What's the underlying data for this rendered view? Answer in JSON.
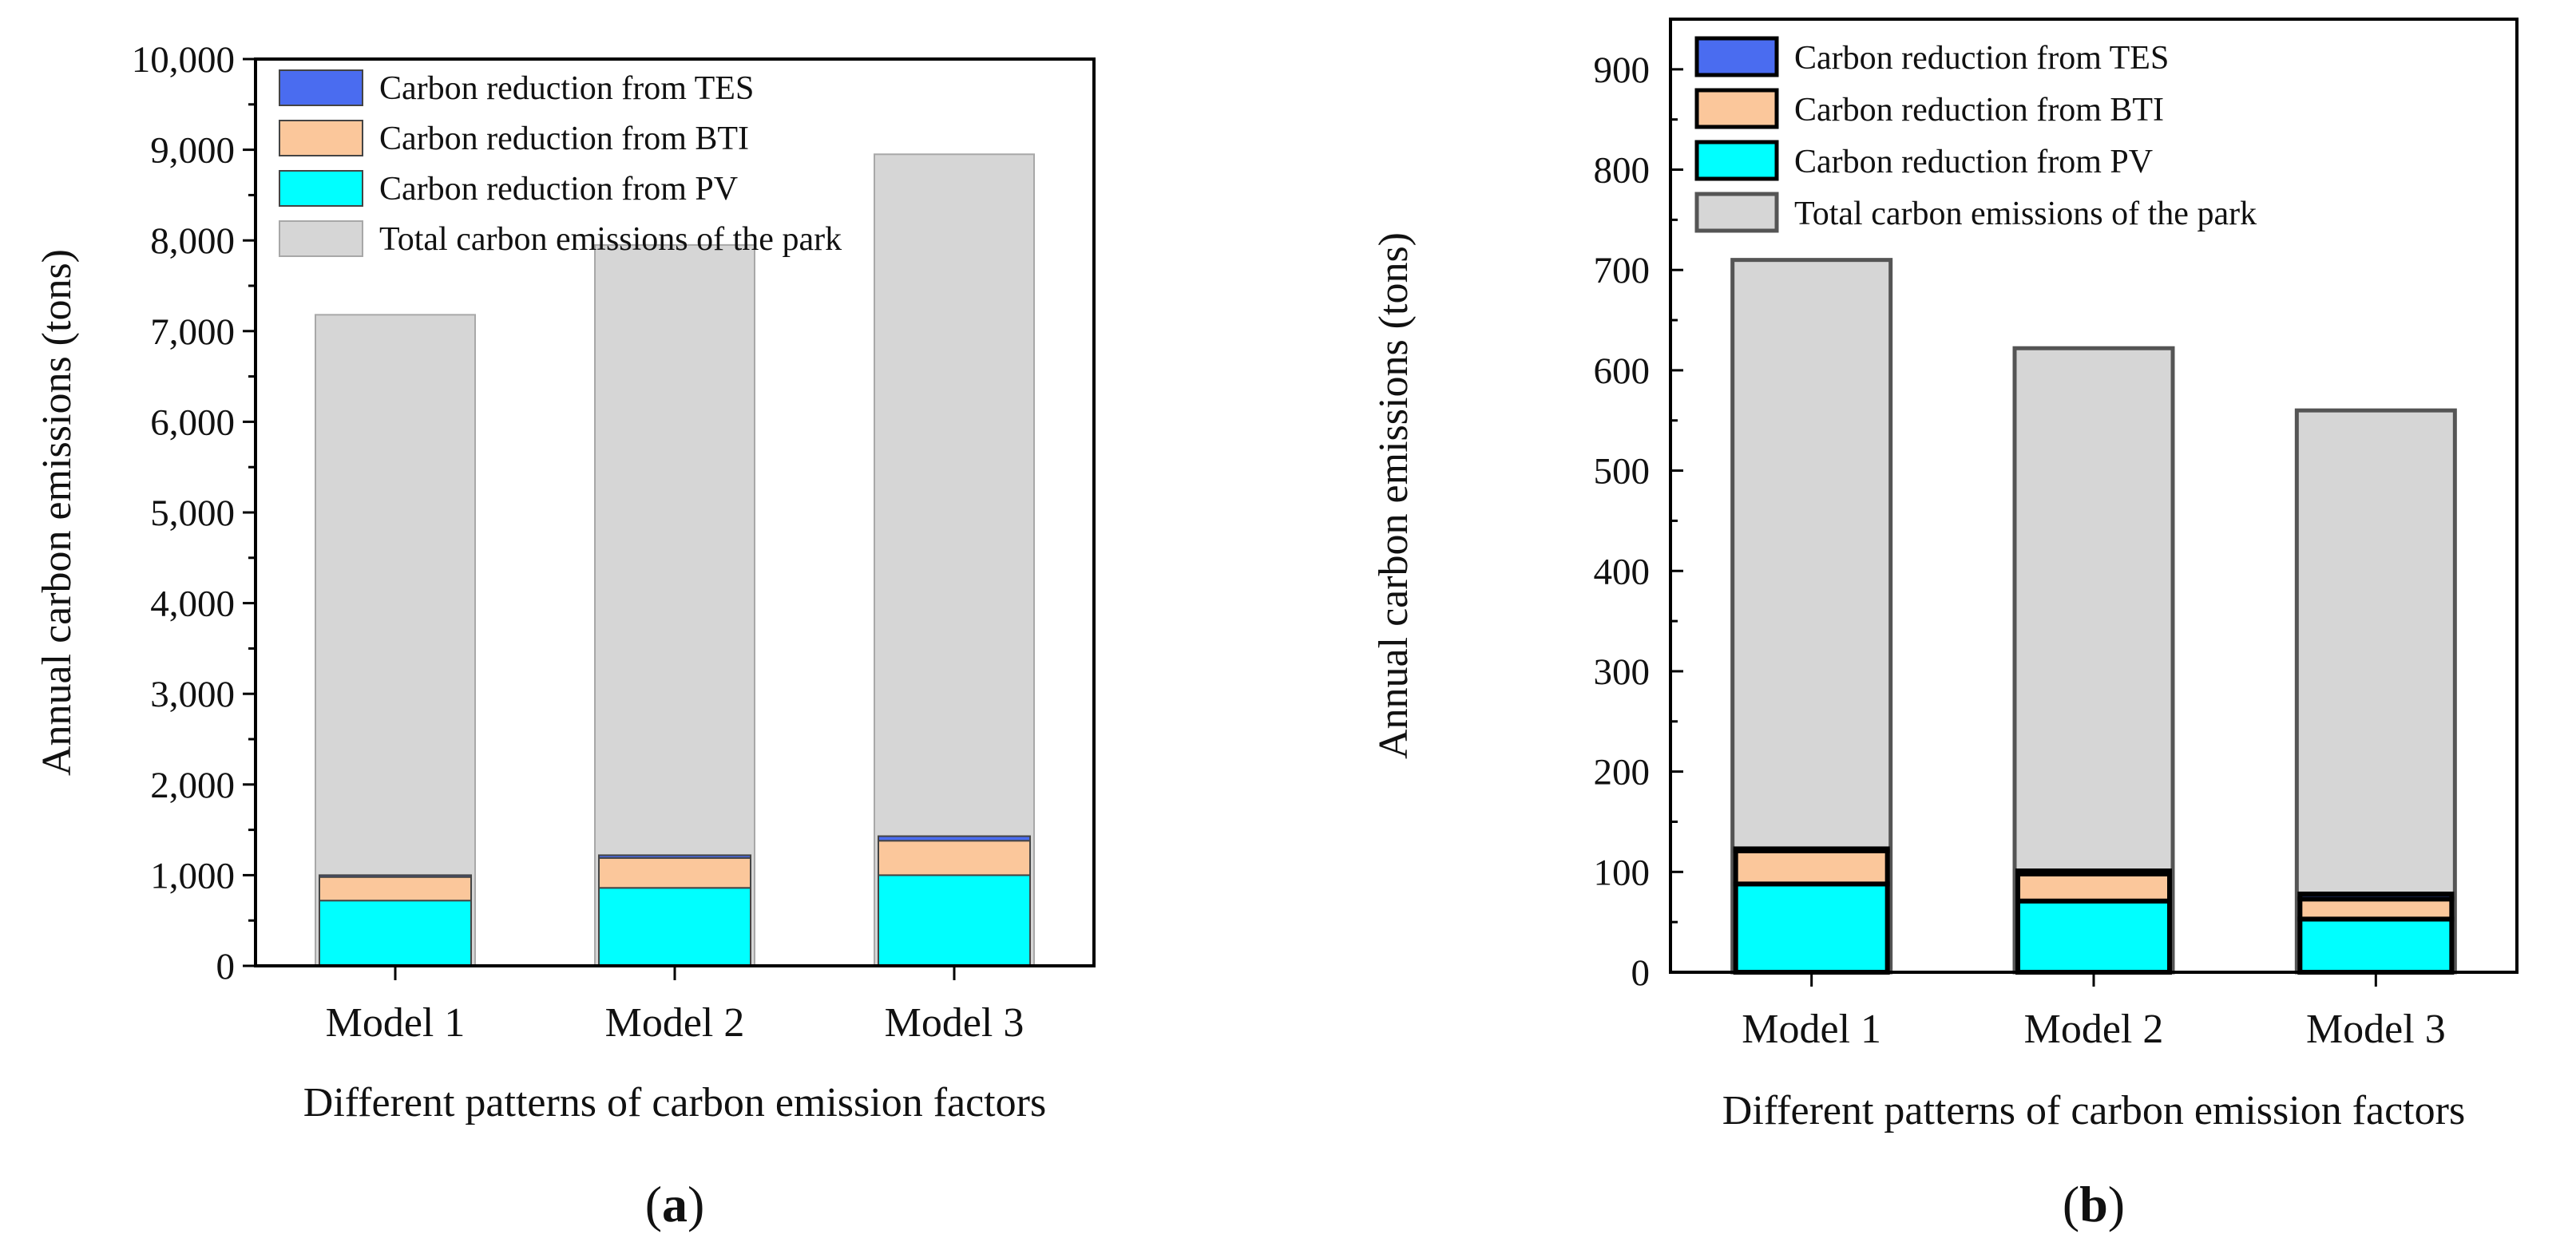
{
  "chart_data": [
    {
      "type": "bar",
      "panel": "(a)",
      "categories": [
        "Model 1",
        "Model 2",
        "Model 3"
      ],
      "xlabel": "Different patterns of carbon emission factors",
      "ylabel": "Annual carbon emissions (tons)",
      "ylim": [
        0,
        10000
      ],
      "yticks": [
        "0",
        "1,000",
        "2,000",
        "3,000",
        "4,000",
        "5,000",
        "6,000",
        "7,000",
        "8,000",
        "9,000",
        "10,000"
      ],
      "grid": false,
      "legend_position": "top-left",
      "legend": [
        "Carbon reduction from TES",
        "Carbon reduction from BTI",
        "Carbon reduction from PV",
        "Total carbon emissions of the park"
      ],
      "series": [
        {
          "name": "Total carbon emissions of the park",
          "values": [
            7180,
            7950,
            8950
          ]
        },
        {
          "name": "Carbon reduction from PV",
          "values": [
            720,
            860,
            1000
          ]
        },
        {
          "name": "Carbon reduction from BTI",
          "values": [
            260,
            330,
            380
          ]
        },
        {
          "name": "Carbon reduction from TES",
          "values": [
            20,
            30,
            50
          ]
        }
      ]
    },
    {
      "type": "bar",
      "panel": "(b)",
      "categories": [
        "Model 1",
        "Model 2",
        "Model 3"
      ],
      "xlabel": "Different patterns of carbon emission factors",
      "ylabel": "Annual carbon emissions (tons)",
      "ylim": [
        0,
        950
      ],
      "yticks": [
        "0",
        "100",
        "200",
        "300",
        "400",
        "500",
        "600",
        "700",
        "800",
        "900"
      ],
      "grid": false,
      "legend_position": "top-left",
      "legend": [
        "Carbon reduction from TES",
        "Carbon reduction from BTI",
        "Carbon reduction from PV",
        "Total carbon emissions of the park"
      ],
      "series": [
        {
          "name": "Total carbon emissions of the park",
          "values": [
            710,
            622,
            560
          ]
        },
        {
          "name": "Carbon reduction from PV",
          "values": [
            88,
            71,
            53
          ]
        },
        {
          "name": "Carbon reduction from BTI",
          "values": [
            33,
            27,
            20
          ]
        },
        {
          "name": "Carbon reduction from TES",
          "values": [
            2,
            3,
            5
          ]
        }
      ]
    }
  ],
  "colors": {
    "total": "#d6d6d6",
    "pv": "#00ffff",
    "bti": "#fbc79b",
    "tes": "#4a6cf0"
  }
}
